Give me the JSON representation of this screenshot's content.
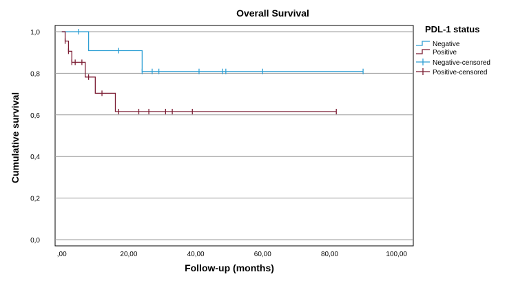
{
  "chart_data": {
    "type": "line",
    "title": "Overall Survival",
    "xlabel": "Follow-up (months)",
    "ylabel": "Cumulative survival",
    "xlim": [
      -2,
      105
    ],
    "ylim": [
      -0.03,
      1.03
    ],
    "x_ticks": [
      0,
      20,
      40,
      60,
      80,
      100
    ],
    "x_tick_labels": [
      ",00",
      "20,00",
      "40,00",
      "60,00",
      "80,00",
      "100,00"
    ],
    "y_ticks": [
      0,
      0.2,
      0.4,
      0.6,
      0.8,
      1.0
    ],
    "y_tick_labels": [
      "0,0",
      "0,2",
      "0,4",
      "0,6",
      "0,8",
      "1,0"
    ],
    "grid": "horizontal",
    "legend": {
      "title": "PDL-1 status",
      "placement": "right",
      "entries": [
        "Negative",
        "Positive",
        "Negative-censored",
        "Positive-censored"
      ]
    },
    "series": [
      {
        "name": "Negative",
        "color": "#2e9fd4",
        "step_x": [
          0,
          8,
          24,
          90
        ],
        "step_y": [
          1.0,
          0.909,
          0.809,
          0.809
        ],
        "censored_x": [
          5,
          17,
          24,
          27,
          29,
          41,
          48,
          49,
          60,
          90
        ],
        "censored_y": [
          1.0,
          0.909,
          0.809,
          0.809,
          0.809,
          0.809,
          0.809,
          0.809,
          0.809,
          0.809
        ]
      },
      {
        "name": "Positive",
        "color": "#7b1c33",
        "step_x": [
          0,
          1,
          2,
          3,
          5,
          7,
          10,
          16,
          82
        ],
        "step_y": [
          1.0,
          0.955,
          0.906,
          0.853,
          0.853,
          0.782,
          0.704,
          0.616,
          0.616
        ],
        "censored_x": [
          1,
          2,
          3,
          4,
          6,
          8,
          12,
          17,
          23,
          26,
          31,
          33,
          39,
          82
        ],
        "censored_y": [
          0.955,
          0.906,
          0.853,
          0.853,
          0.853,
          0.782,
          0.704,
          0.616,
          0.616,
          0.616,
          0.616,
          0.616,
          0.616,
          0.616
        ]
      }
    ]
  }
}
